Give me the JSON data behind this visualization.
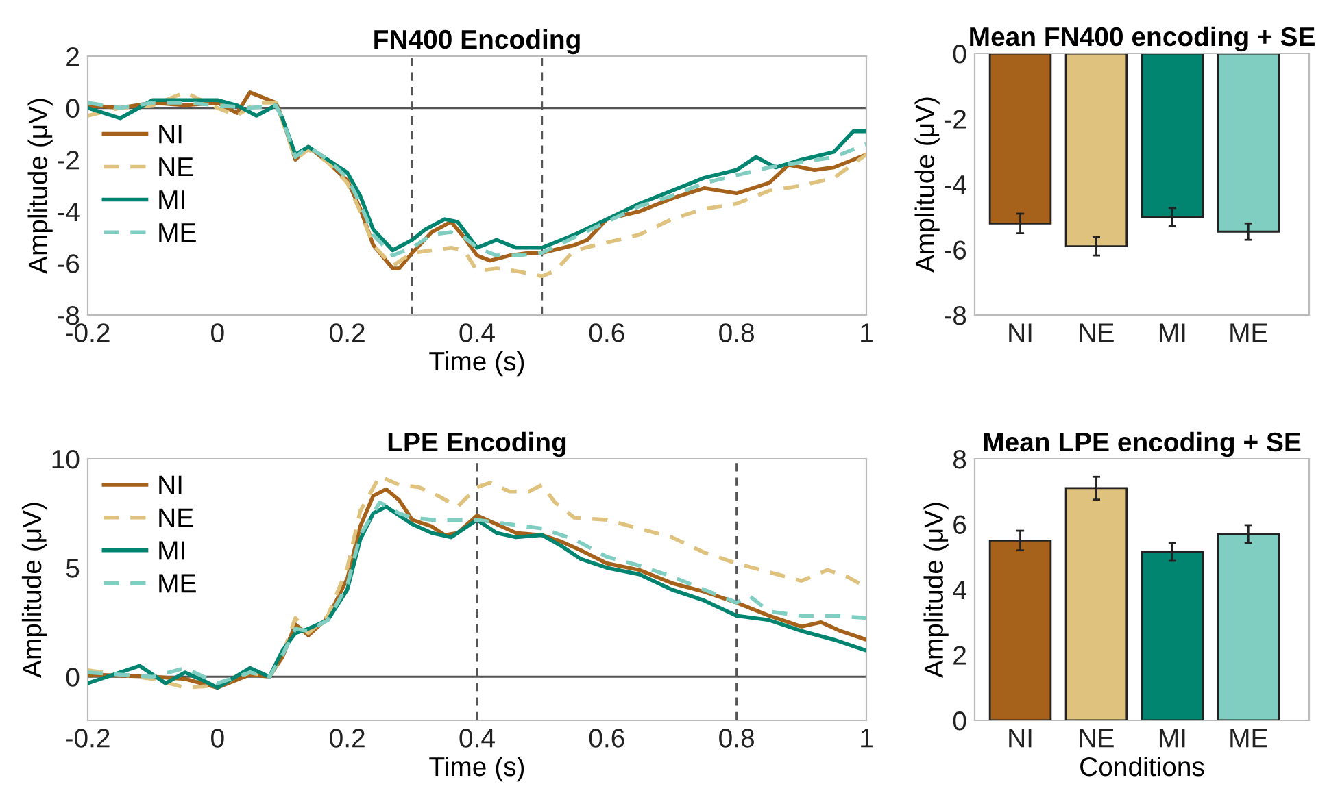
{
  "chart_data": [
    {
      "type": "line",
      "title": "FN400 Encoding",
      "xlabel": "Time (s)",
      "ylabel": "Amplitude (μV)",
      "xlim": [
        -0.2,
        1
      ],
      "ylim": [
        -8,
        2
      ],
      "xticks": [
        -0.2,
        0,
        0.2,
        0.4,
        0.6,
        0.8,
        1
      ],
      "yticks": [
        -8,
        -6,
        -4,
        -2,
        0,
        2
      ],
      "legend": "left",
      "grid": false,
      "ref_lines": [
        {
          "axis": "y",
          "value": 0,
          "color": "#555555",
          "line_style": "solid"
        },
        {
          "axis": "x",
          "value": 0.3,
          "color": "#555555",
          "line_style": "dashed"
        },
        {
          "axis": "x",
          "value": 0.5,
          "color": "#555555",
          "line_style": "dashed"
        }
      ],
      "series": [
        {
          "name": "NI",
          "color": "#a6611a",
          "line_style": "solid",
          "x": [
            -0.2,
            -0.15,
            -0.1,
            -0.05,
            0,
            0.03,
            0.05,
            0.09,
            0.1,
            0.12,
            0.14,
            0.17,
            0.2,
            0.22,
            0.24,
            0.27,
            0.28,
            0.3,
            0.33,
            0.36,
            0.38,
            0.4,
            0.42,
            0.45,
            0.48,
            0.5,
            0.55,
            0.57,
            0.6,
            0.65,
            0.7,
            0.75,
            0.8,
            0.85,
            0.88,
            0.92,
            0.95,
            1.0
          ],
          "values": [
            0.1,
            0.0,
            0.2,
            0.1,
            0.2,
            -0.2,
            0.6,
            0.2,
            -0.4,
            -2.0,
            -1.5,
            -2.1,
            -2.8,
            -3.9,
            -5.3,
            -6.2,
            -6.2,
            -5.6,
            -4.8,
            -4.4,
            -5.0,
            -5.7,
            -5.9,
            -5.7,
            -5.6,
            -5.6,
            -5.3,
            -5.1,
            -4.3,
            -4.0,
            -3.5,
            -3.1,
            -3.3,
            -2.9,
            -2.2,
            -2.4,
            -2.3,
            -1.8
          ]
        },
        {
          "name": "NE",
          "color": "#dfc27d",
          "line_style": "dashed",
          "x": [
            -0.2,
            -0.15,
            -0.1,
            -0.05,
            0,
            0.03,
            0.06,
            0.09,
            0.1,
            0.12,
            0.14,
            0.17,
            0.2,
            0.22,
            0.24,
            0.27,
            0.3,
            0.33,
            0.36,
            0.38,
            0.4,
            0.43,
            0.46,
            0.5,
            0.52,
            0.55,
            0.6,
            0.65,
            0.7,
            0.75,
            0.8,
            0.85,
            0.9,
            0.95,
            1.0
          ],
          "values": [
            -0.3,
            0.0,
            0.1,
            0.6,
            0.0,
            -0.3,
            0.2,
            0.2,
            -0.5,
            -2.0,
            -1.6,
            -2.1,
            -2.9,
            -4.0,
            -5.3,
            -6.1,
            -5.6,
            -5.5,
            -5.4,
            -5.5,
            -6.3,
            -6.2,
            -6.3,
            -6.5,
            -6.3,
            -5.5,
            -5.2,
            -4.9,
            -4.3,
            -3.9,
            -3.7,
            -3.2,
            -3.0,
            -2.7,
            -1.8
          ]
        },
        {
          "name": "MI",
          "color": "#018571",
          "line_style": "solid",
          "x": [
            -0.2,
            -0.15,
            -0.1,
            -0.05,
            0,
            0.03,
            0.06,
            0.09,
            0.1,
            0.12,
            0.14,
            0.17,
            0.2,
            0.22,
            0.24,
            0.27,
            0.3,
            0.32,
            0.35,
            0.37,
            0.4,
            0.43,
            0.46,
            0.5,
            0.55,
            0.6,
            0.65,
            0.7,
            0.75,
            0.8,
            0.83,
            0.86,
            0.9,
            0.95,
            0.98,
            1.0
          ],
          "values": [
            0.0,
            -0.4,
            0.3,
            0.3,
            0.3,
            0.1,
            -0.3,
            0.1,
            -0.4,
            -1.8,
            -1.5,
            -2.0,
            -2.5,
            -3.4,
            -4.7,
            -5.5,
            -5.1,
            -4.7,
            -4.3,
            -4.4,
            -5.4,
            -5.1,
            -5.4,
            -5.4,
            -4.9,
            -4.3,
            -3.7,
            -3.2,
            -2.7,
            -2.4,
            -1.9,
            -2.3,
            -2.0,
            -1.7,
            -0.9,
            -0.9
          ]
        },
        {
          "name": "ME",
          "color": "#80cdc1",
          "line_style": "dashed",
          "x": [
            -0.2,
            -0.15,
            -0.1,
            -0.05,
            0,
            0.05,
            0.09,
            0.1,
            0.12,
            0.14,
            0.17,
            0.2,
            0.22,
            0.24,
            0.27,
            0.3,
            0.33,
            0.36,
            0.38,
            0.4,
            0.43,
            0.46,
            0.5,
            0.55,
            0.6,
            0.65,
            0.7,
            0.75,
            0.8,
            0.85,
            0.9,
            0.95,
            1.0
          ],
          "values": [
            0.2,
            0.0,
            0.2,
            0.2,
            0.1,
            0.0,
            0.1,
            -0.4,
            -1.9,
            -1.5,
            -2.0,
            -2.7,
            -3.7,
            -4.9,
            -5.7,
            -5.4,
            -4.9,
            -4.8,
            -5.0,
            -5.4,
            -5.7,
            -5.7,
            -5.6,
            -5.0,
            -4.4,
            -3.8,
            -3.4,
            -2.9,
            -2.6,
            -2.3,
            -2.1,
            -1.9,
            -1.4
          ]
        }
      ]
    },
    {
      "type": "bar",
      "title": "Mean FN400 encoding + SE",
      "ylabel": "Amplitude (μV)",
      "categories": [
        "NI",
        "NE",
        "MI",
        "ME"
      ],
      "values": [
        -5.2,
        -5.9,
        -5.0,
        -5.45
      ],
      "errors": [
        0.3,
        0.28,
        0.27,
        0.25
      ],
      "colors": [
        "#a6611a",
        "#dfc27d",
        "#018571",
        "#80cdc1"
      ],
      "ylim": [
        -8,
        0
      ],
      "yticks": [
        -8,
        -6,
        -4,
        -2,
        0
      ],
      "grid": false
    },
    {
      "type": "line",
      "title": "LPE Encoding",
      "xlabel": "Time (s)",
      "ylabel": "Amplitude (μV)",
      "xlim": [
        -0.2,
        1
      ],
      "ylim": [
        -2,
        10
      ],
      "xticks": [
        -0.2,
        0,
        0.2,
        0.4,
        0.6,
        0.8,
        1
      ],
      "yticks": [
        0,
        5,
        10
      ],
      "legend": "top left",
      "grid": false,
      "ref_lines": [
        {
          "axis": "y",
          "value": 0,
          "color": "#555555",
          "line_style": "solid"
        },
        {
          "axis": "x",
          "value": 0.4,
          "color": "#555555",
          "line_style": "dashed"
        },
        {
          "axis": "x",
          "value": 0.8,
          "color": "#555555",
          "line_style": "dashed"
        }
      ],
      "series": [
        {
          "name": "NI",
          "color": "#a6611a",
          "line_style": "solid",
          "x": [
            -0.2,
            -0.1,
            -0.05,
            0,
            0.05,
            0.08,
            0.1,
            0.12,
            0.14,
            0.17,
            0.2,
            0.22,
            0.24,
            0.26,
            0.28,
            0.3,
            0.33,
            0.35,
            0.37,
            0.4,
            0.43,
            0.46,
            0.5,
            0.53,
            0.56,
            0.6,
            0.65,
            0.7,
            0.75,
            0.8,
            0.85,
            0.9,
            0.93,
            0.96,
            1.0
          ],
          "values": [
            0.1,
            0.0,
            -0.1,
            -0.5,
            0.1,
            0.0,
            0.9,
            2.4,
            1.9,
            2.7,
            4.5,
            6.9,
            8.3,
            8.6,
            8.1,
            7.2,
            6.9,
            6.5,
            6.6,
            7.4,
            7.0,
            6.6,
            6.5,
            6.2,
            5.8,
            5.2,
            4.9,
            4.3,
            3.9,
            3.4,
            2.8,
            2.3,
            2.5,
            2.1,
            1.7
          ]
        },
        {
          "name": "NE",
          "color": "#dfc27d",
          "line_style": "dashed",
          "x": [
            -0.2,
            -0.1,
            -0.05,
            0,
            0.05,
            0.08,
            0.1,
            0.12,
            0.14,
            0.17,
            0.2,
            0.22,
            0.25,
            0.28,
            0.31,
            0.34,
            0.37,
            0.4,
            0.42,
            0.45,
            0.48,
            0.5,
            0.52,
            0.55,
            0.6,
            0.65,
            0.7,
            0.75,
            0.8,
            0.85,
            0.9,
            0.94,
            0.97,
            1.0
          ],
          "values": [
            0.3,
            -0.1,
            -0.5,
            -0.4,
            0.2,
            0.0,
            1.0,
            2.7,
            2.0,
            2.8,
            5.0,
            7.6,
            9.2,
            8.8,
            8.7,
            8.3,
            7.8,
            8.7,
            8.9,
            8.5,
            8.5,
            8.8,
            8.0,
            7.3,
            7.2,
            6.8,
            6.4,
            5.7,
            5.2,
            4.8,
            4.4,
            4.9,
            4.6,
            4.1
          ]
        },
        {
          "name": "MI",
          "color": "#018571",
          "line_style": "solid",
          "x": [
            -0.2,
            -0.15,
            -0.12,
            -0.08,
            -0.05,
            -0.02,
            0,
            0.05,
            0.08,
            0.1,
            0.12,
            0.14,
            0.17,
            0.2,
            0.22,
            0.24,
            0.26,
            0.28,
            0.3,
            0.33,
            0.36,
            0.38,
            0.4,
            0.43,
            0.46,
            0.5,
            0.53,
            0.56,
            0.6,
            0.65,
            0.7,
            0.75,
            0.8,
            0.85,
            0.9,
            0.95,
            1.0
          ],
          "values": [
            -0.3,
            0.2,
            0.5,
            -0.3,
            0.2,
            -0.2,
            -0.5,
            0.4,
            0.0,
            1.2,
            2.0,
            2.2,
            2.6,
            4.0,
            6.3,
            7.5,
            7.8,
            7.4,
            7.0,
            6.6,
            6.4,
            6.8,
            7.2,
            6.6,
            6.4,
            6.5,
            6.0,
            5.4,
            5.0,
            4.7,
            4.0,
            3.5,
            2.8,
            2.6,
            2.1,
            1.7,
            1.2
          ]
        },
        {
          "name": "ME",
          "color": "#80cdc1",
          "line_style": "dashed",
          "x": [
            -0.2,
            -0.1,
            -0.05,
            0,
            0.05,
            0.08,
            0.1,
            0.12,
            0.14,
            0.17,
            0.2,
            0.22,
            0.25,
            0.28,
            0.3,
            0.33,
            0.36,
            0.4,
            0.45,
            0.5,
            0.55,
            0.6,
            0.65,
            0.7,
            0.75,
            0.8,
            0.82,
            0.85,
            0.9,
            0.95,
            1.0
          ],
          "values": [
            0.2,
            0.0,
            0.4,
            -0.3,
            0.2,
            0.0,
            1.0,
            2.2,
            2.1,
            2.6,
            4.2,
            6.5,
            8.0,
            7.5,
            7.3,
            7.2,
            7.2,
            7.2,
            7.0,
            6.8,
            6.3,
            5.5,
            5.1,
            4.6,
            4.0,
            3.4,
            3.7,
            3.0,
            2.8,
            2.8,
            2.7
          ]
        }
      ]
    },
    {
      "type": "bar",
      "title": "Mean LPE encoding + SE",
      "xlabel": "Conditions",
      "ylabel": "Amplitude (μV)",
      "categories": [
        "NI",
        "NE",
        "MI",
        "ME"
      ],
      "values": [
        5.5,
        7.1,
        5.15,
        5.7
      ],
      "errors": [
        0.3,
        0.35,
        0.27,
        0.27
      ],
      "colors": [
        "#a6611a",
        "#dfc27d",
        "#018571",
        "#80cdc1"
      ],
      "ylim": [
        0,
        8
      ],
      "yticks": [
        0,
        2,
        4,
        6,
        8
      ],
      "grid": false
    }
  ]
}
